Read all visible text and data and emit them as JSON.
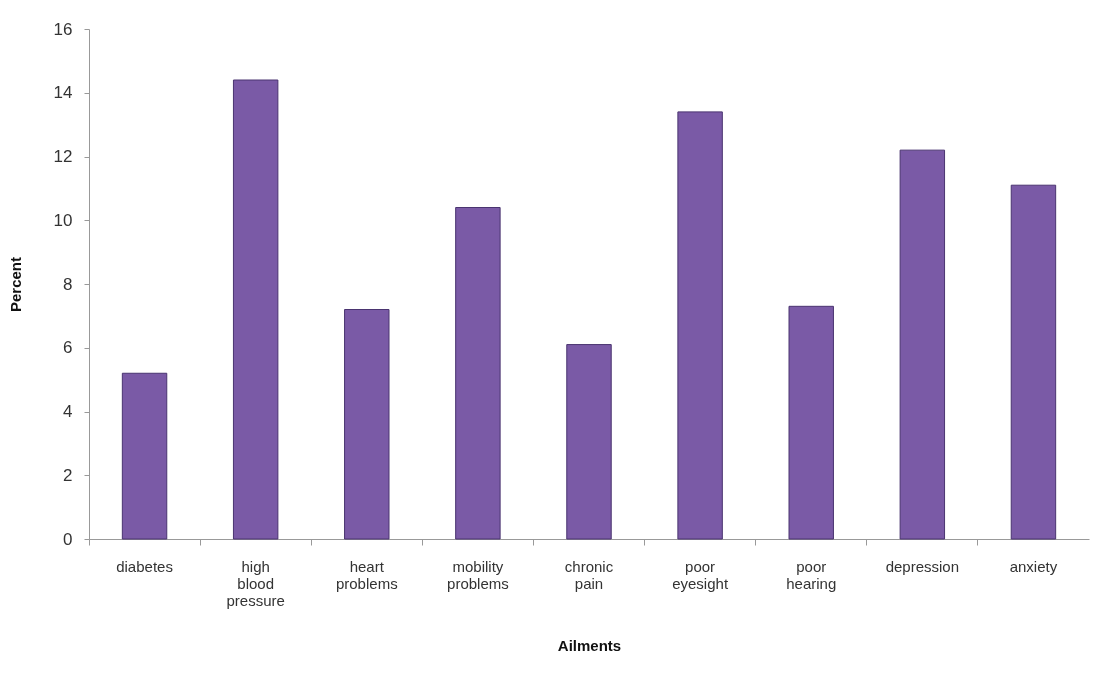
{
  "chart_data": {
    "type": "bar",
    "xlabel": "Ailments",
    "ylabel": "Percent",
    "categories": [
      "diabetes",
      "high blood pressure",
      "heart problems",
      "mobility problems",
      "chronic pain",
      "poor eyesight",
      "poor hearing",
      "depression",
      "anxiety"
    ],
    "values": [
      5.2,
      14.4,
      7.2,
      10.4,
      6.1,
      13.4,
      7.3,
      12.2,
      11.1
    ],
    "color": "#7a5aa6",
    "ylim": [
      0,
      16
    ],
    "yticks": [
      0,
      2,
      4,
      6,
      8,
      10,
      12,
      14,
      16
    ],
    "grid": false
  }
}
